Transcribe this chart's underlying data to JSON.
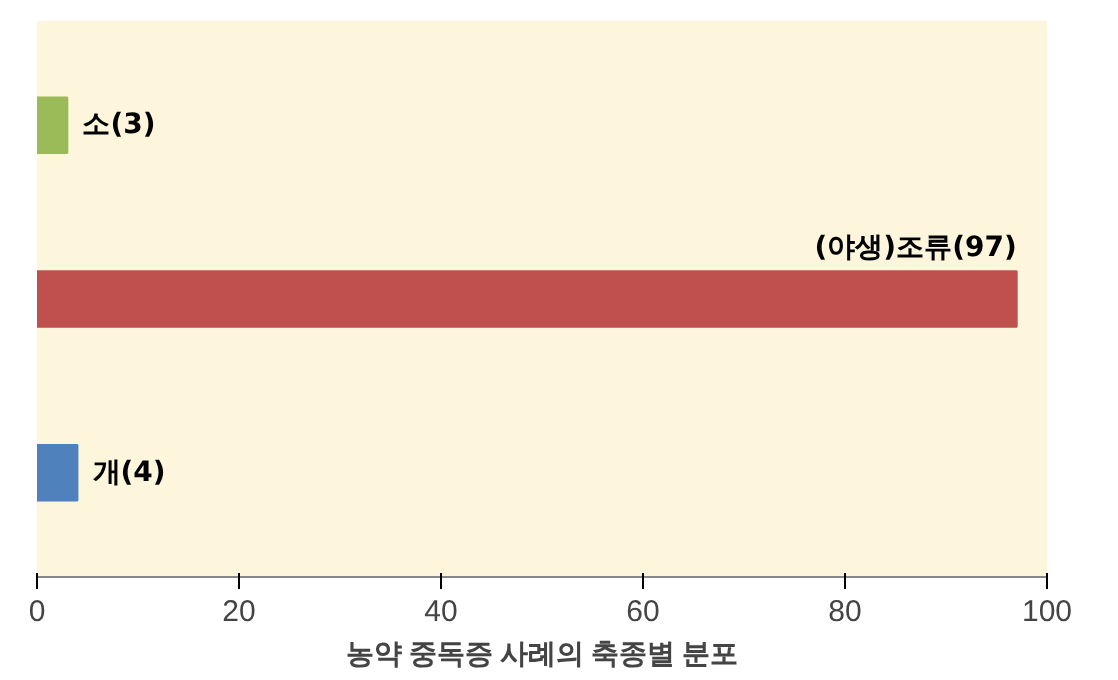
{
  "chart_data": {
    "type": "bar",
    "orientation": "horizontal",
    "title": "농약 중독증 사례의 축종별 분포",
    "categories": [
      null,
      null,
      null
    ],
    "values": [
      3,
      97,
      4
    ],
    "colors": [
      "#9bbb59",
      "#c0504d",
      "#4f81bd"
    ],
    "value_labels": [
      "소(3)",
      "(야생)조류(97)",
      "개(4)"
    ],
    "xlim": [
      0,
      100
    ],
    "xticks": [
      0,
      20,
      40,
      60,
      80,
      100
    ],
    "grid": false
  }
}
